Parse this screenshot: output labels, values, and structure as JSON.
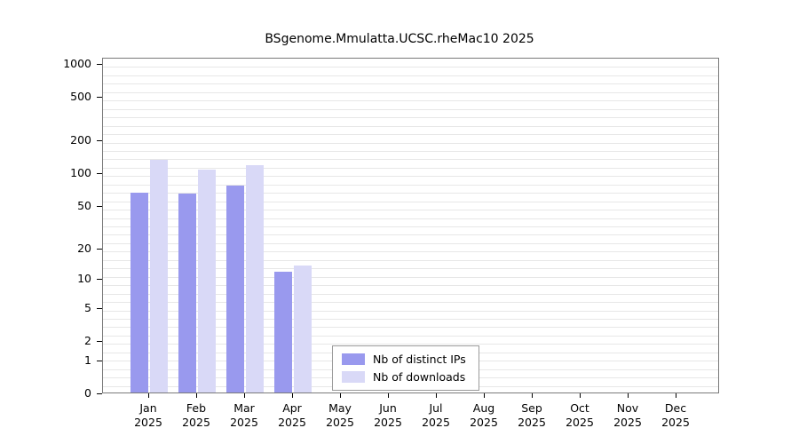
{
  "chart_data": {
    "type": "bar",
    "title": "BSgenome.Mmulatta.UCSC.rheMac10 2025",
    "categories": [
      {
        "month": "Jan",
        "year": "2025"
      },
      {
        "month": "Feb",
        "year": "2025"
      },
      {
        "month": "Mar",
        "year": "2025"
      },
      {
        "month": "Apr",
        "year": "2025"
      },
      {
        "month": "May",
        "year": "2025"
      },
      {
        "month": "Jun",
        "year": "2025"
      },
      {
        "month": "Jul",
        "year": "2025"
      },
      {
        "month": "Aug",
        "year": "2025"
      },
      {
        "month": "Sep",
        "year": "2025"
      },
      {
        "month": "Oct",
        "year": "2025"
      },
      {
        "month": "Nov",
        "year": "2025"
      },
      {
        "month": "Dec",
        "year": "2025"
      }
    ],
    "series": [
      {
        "name": "Nb of distinct IPs",
        "color": "#9999ee",
        "values": [
          68,
          67,
          78,
          12,
          0,
          0,
          0,
          0,
          0,
          0,
          0,
          0
        ]
      },
      {
        "name": "Nb of downloads",
        "color": "#d9d9f7",
        "values": [
          135,
          110,
          122,
          14,
          0,
          0,
          0,
          0,
          0,
          0,
          0,
          0
        ]
      }
    ],
    "yticks": [
      0,
      1,
      2,
      5,
      10,
      20,
      50,
      100,
      200,
      500,
      1000
    ],
    "ylim": [
      0,
      1000
    ],
    "yscale": "log1p",
    "xlabel": "",
    "ylabel": "",
    "grid": true,
    "legend_position": "bottom-center-inside"
  }
}
